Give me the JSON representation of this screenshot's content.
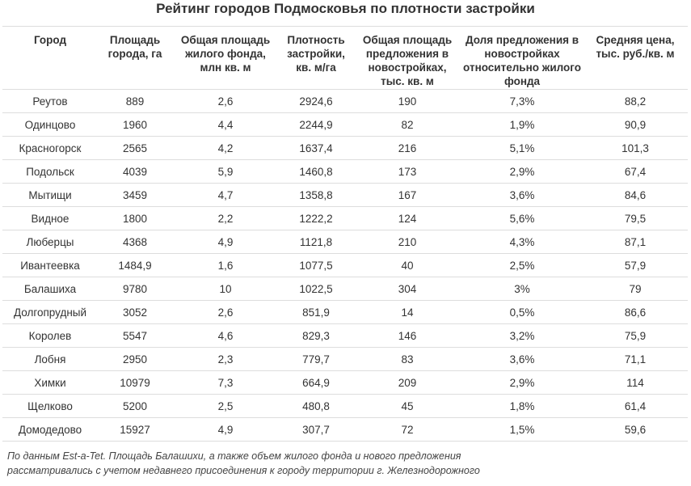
{
  "title": "Рейтинг городов Подмосковья по плотности застройки",
  "columns": [
    "Город",
    "Площадь города, га",
    "Общая площадь жилого фонда, млн кв. м",
    "Плотность застройки, кв. м/га",
    "Общая площадь предложения в новостройках, тыс. кв. м",
    "Доля предложения в новостройках относительно жилого фонда",
    "Средняя цена, тыс. руб./кв. м"
  ],
  "chart_data": {
    "type": "table",
    "title": "Рейтинг городов Подмосковья по плотности застройки",
    "columns": [
      "Город",
      "Площадь города, га",
      "Общая площадь жилого фонда, млн кв. м",
      "Плотность застройки, кв. м/га",
      "Общая площадь предложения в новостройках, тыс. кв. м",
      "Доля предложения в новостройках относительно жилого фонда",
      "Средняя цена, тыс. руб./кв. м"
    ],
    "rows": [
      [
        "Реутов",
        "889",
        "2,6",
        "2924,6",
        "190",
        "7,3%",
        "88,2"
      ],
      [
        "Одинцово",
        "1960",
        "4,4",
        "2244,9",
        "82",
        "1,9%",
        "90,9"
      ],
      [
        "Красногорск",
        "2565",
        "4,2",
        "1637,4",
        "216",
        "5,1%",
        "101,3"
      ],
      [
        "Подольск",
        "4039",
        "5,9",
        "1460,8",
        "173",
        "2,9%",
        "67,4"
      ],
      [
        "Мытищи",
        "3459",
        "4,7",
        "1358,8",
        "167",
        "3,6%",
        "84,6"
      ],
      [
        "Видное",
        "1800",
        "2,2",
        "1222,2",
        "124",
        "5,6%",
        "79,5"
      ],
      [
        "Люберцы",
        "4368",
        "4,9",
        "1121,8",
        "210",
        "4,3%",
        "87,1"
      ],
      [
        "Ивантеевка",
        "1484,9",
        "1,6",
        "1077,5",
        "40",
        "2,5%",
        "57,9"
      ],
      [
        "Балашиха",
        "9780",
        "10",
        "1022,5",
        "304",
        "3%",
        "79"
      ],
      [
        "Долгопрудный",
        "3052",
        "2,6",
        "851,9",
        "14",
        "0,5%",
        "86,6"
      ],
      [
        "Королев",
        "5547",
        "4,6",
        "829,3",
        "146",
        "3,2%",
        "75,9"
      ],
      [
        "Лобня",
        "2950",
        "2,3",
        "779,7",
        "83",
        "3,6%",
        "71,1"
      ],
      [
        "Химки",
        "10979",
        "7,3",
        "664,9",
        "209",
        "2,9%",
        "114"
      ],
      [
        "Щелково",
        "5200",
        "2,5",
        "480,8",
        "45",
        "1,8%",
        "61,4"
      ],
      [
        "Домодедово",
        "15927",
        "4,9",
        "307,7",
        "72",
        "1,5%",
        "59,6"
      ]
    ]
  },
  "footnote": "По данным Est-a-Tet. Площадь Балашихи, а также объем жилого фонда и нового предложения рассматривались с учетом недавнего присоединения к городу территории г. Железнодорожного"
}
